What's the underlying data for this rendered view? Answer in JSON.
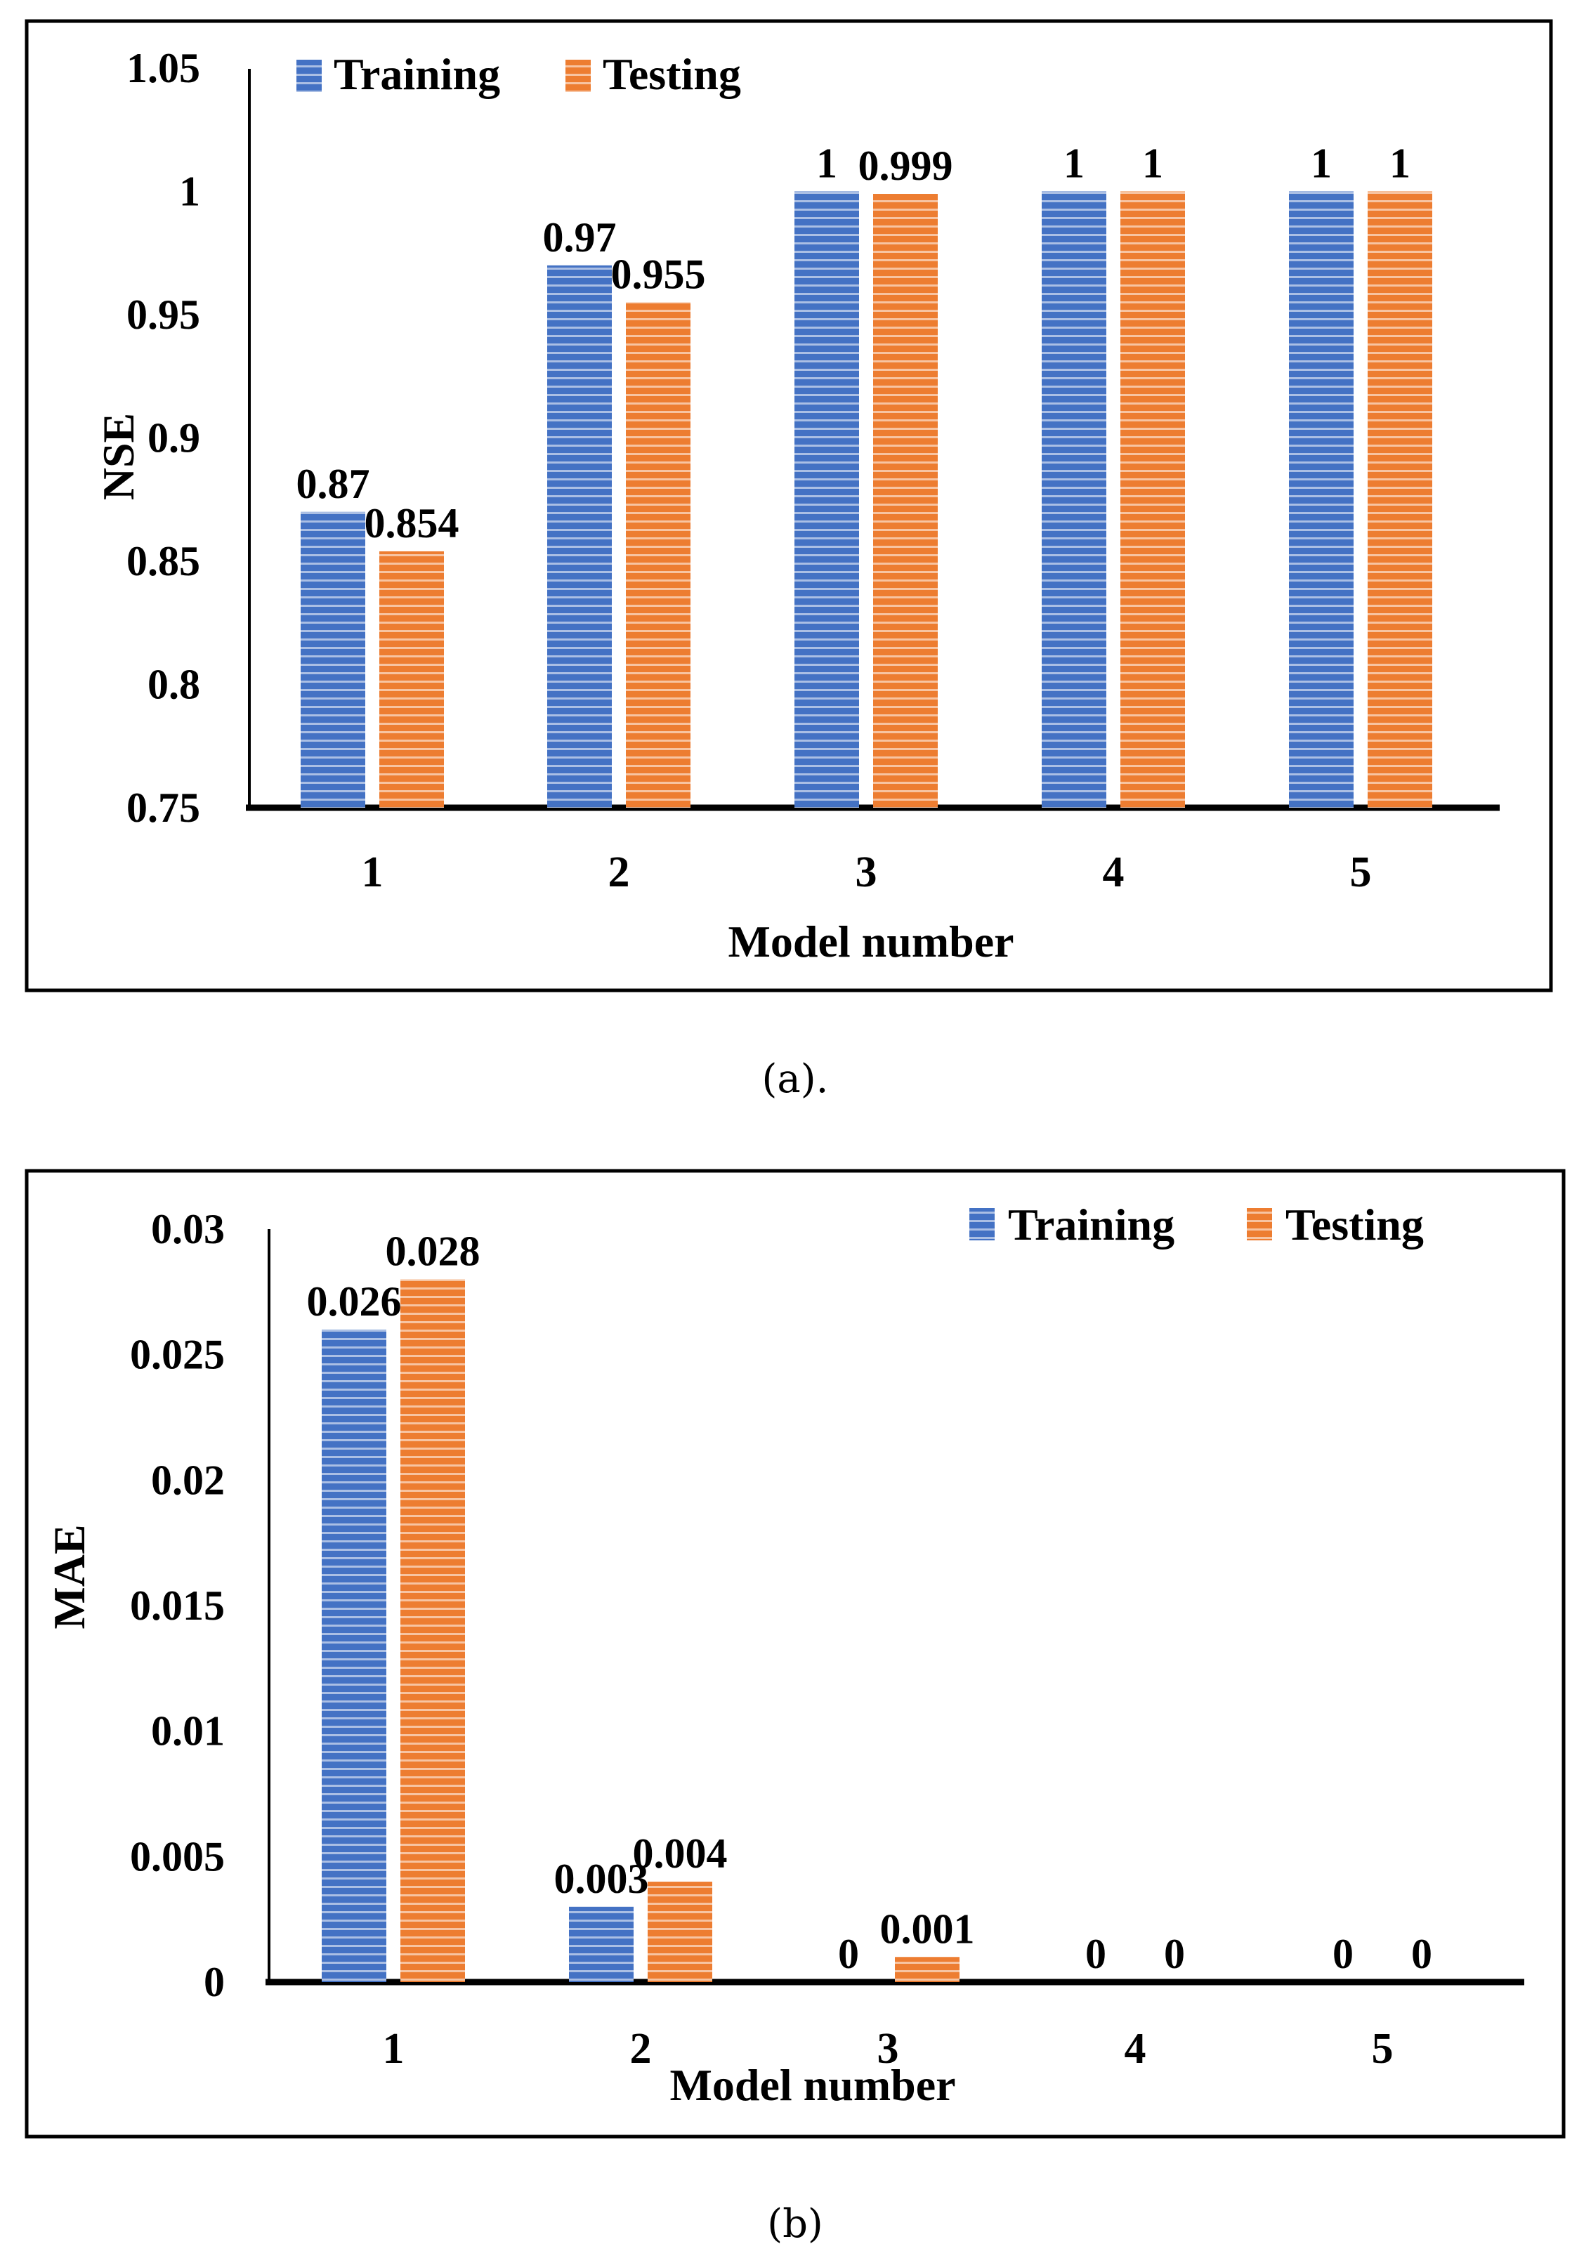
{
  "colors": {
    "training": "#4472C4",
    "testing": "#ED7D31",
    "stripe": "#ffffff",
    "frame": "#000000",
    "text": "#000000"
  },
  "chart_data": [
    {
      "type": "bar",
      "caption": "(a).",
      "xlabel": "Model number",
      "ylabel": "NSE",
      "categories": [
        "1",
        "2",
        "3",
        "4",
        "5"
      ],
      "ylim": [
        0.75,
        1.05
      ],
      "yticks": [
        "1.05",
        "1",
        "0.95",
        "0.9",
        "0.85",
        "0.8",
        "0.75"
      ],
      "ytick_values": [
        1.05,
        1.0,
        0.95,
        0.9,
        0.85,
        0.8,
        0.75
      ],
      "legend": [
        "Training",
        "Testing"
      ],
      "legend_position": "top-left",
      "series": [
        {
          "name": "Training",
          "values": [
            0.87,
            0.97,
            1,
            1,
            1
          ],
          "labels": [
            "0.87",
            "0.97",
            "1",
            "1",
            "1"
          ]
        },
        {
          "name": "Testing",
          "values": [
            0.854,
            0.955,
            0.999,
            1,
            1
          ],
          "labels": [
            "0.854",
            "0.955",
            "0.999",
            "1",
            "1"
          ]
        }
      ]
    },
    {
      "type": "bar",
      "caption": "(b)",
      "xlabel": "Model number",
      "ylabel": "MAE",
      "categories": [
        "1",
        "2",
        "3",
        "4",
        "5"
      ],
      "ylim": [
        0,
        0.03
      ],
      "yticks": [
        "0.03",
        "0.025",
        "0.02",
        "0.015",
        "0.01",
        "0.005",
        "0"
      ],
      "ytick_values": [
        0.03,
        0.025,
        0.02,
        0.015,
        0.01,
        0.005,
        0
      ],
      "legend": [
        "Training",
        "Testing"
      ],
      "legend_position": "top-right",
      "series": [
        {
          "name": "Training",
          "values": [
            0.026,
            0.003,
            0,
            0,
            0
          ],
          "labels": [
            "0.026",
            "0.003",
            "0",
            "0",
            "0"
          ]
        },
        {
          "name": "Testing",
          "values": [
            0.028,
            0.004,
            0.001,
            0,
            0
          ],
          "labels": [
            "0.028",
            "0.004",
            "0.001",
            "0",
            "0"
          ]
        }
      ]
    }
  ]
}
